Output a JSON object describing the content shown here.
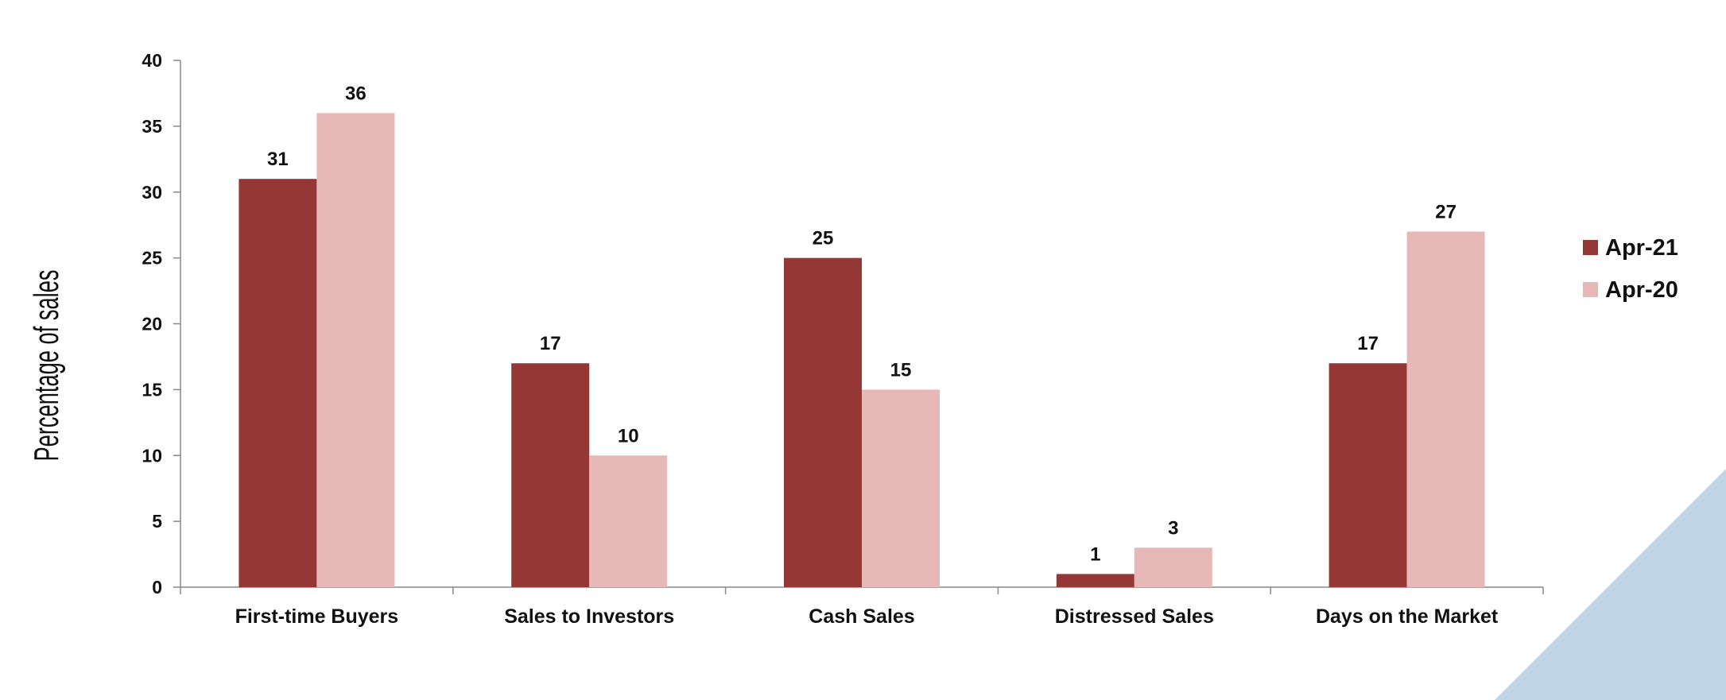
{
  "chart_data": {
    "type": "bar",
    "title": "",
    "xlabel": "",
    "ylabel": "Percentage of  sales",
    "ylim": [
      0,
      40
    ],
    "yticks": [
      0,
      5,
      10,
      15,
      20,
      25,
      30,
      35,
      40
    ],
    "categories": [
      "First-time Buyers",
      "Sales to Investors",
      "Cash Sales",
      "Distressed Sales",
      "Days on the Market"
    ],
    "series": [
      {
        "name": "Apr-21",
        "color": "#953735",
        "values": [
          31,
          17,
          25,
          1,
          17
        ]
      },
      {
        "name": "Apr-20",
        "color": "#E6B9B8",
        "values": [
          36,
          10,
          15,
          3,
          27
        ]
      }
    ],
    "legend_position": "right",
    "grid": false,
    "data_labels": true
  },
  "decoration": {
    "corner_color": "#C0D6E6"
  }
}
